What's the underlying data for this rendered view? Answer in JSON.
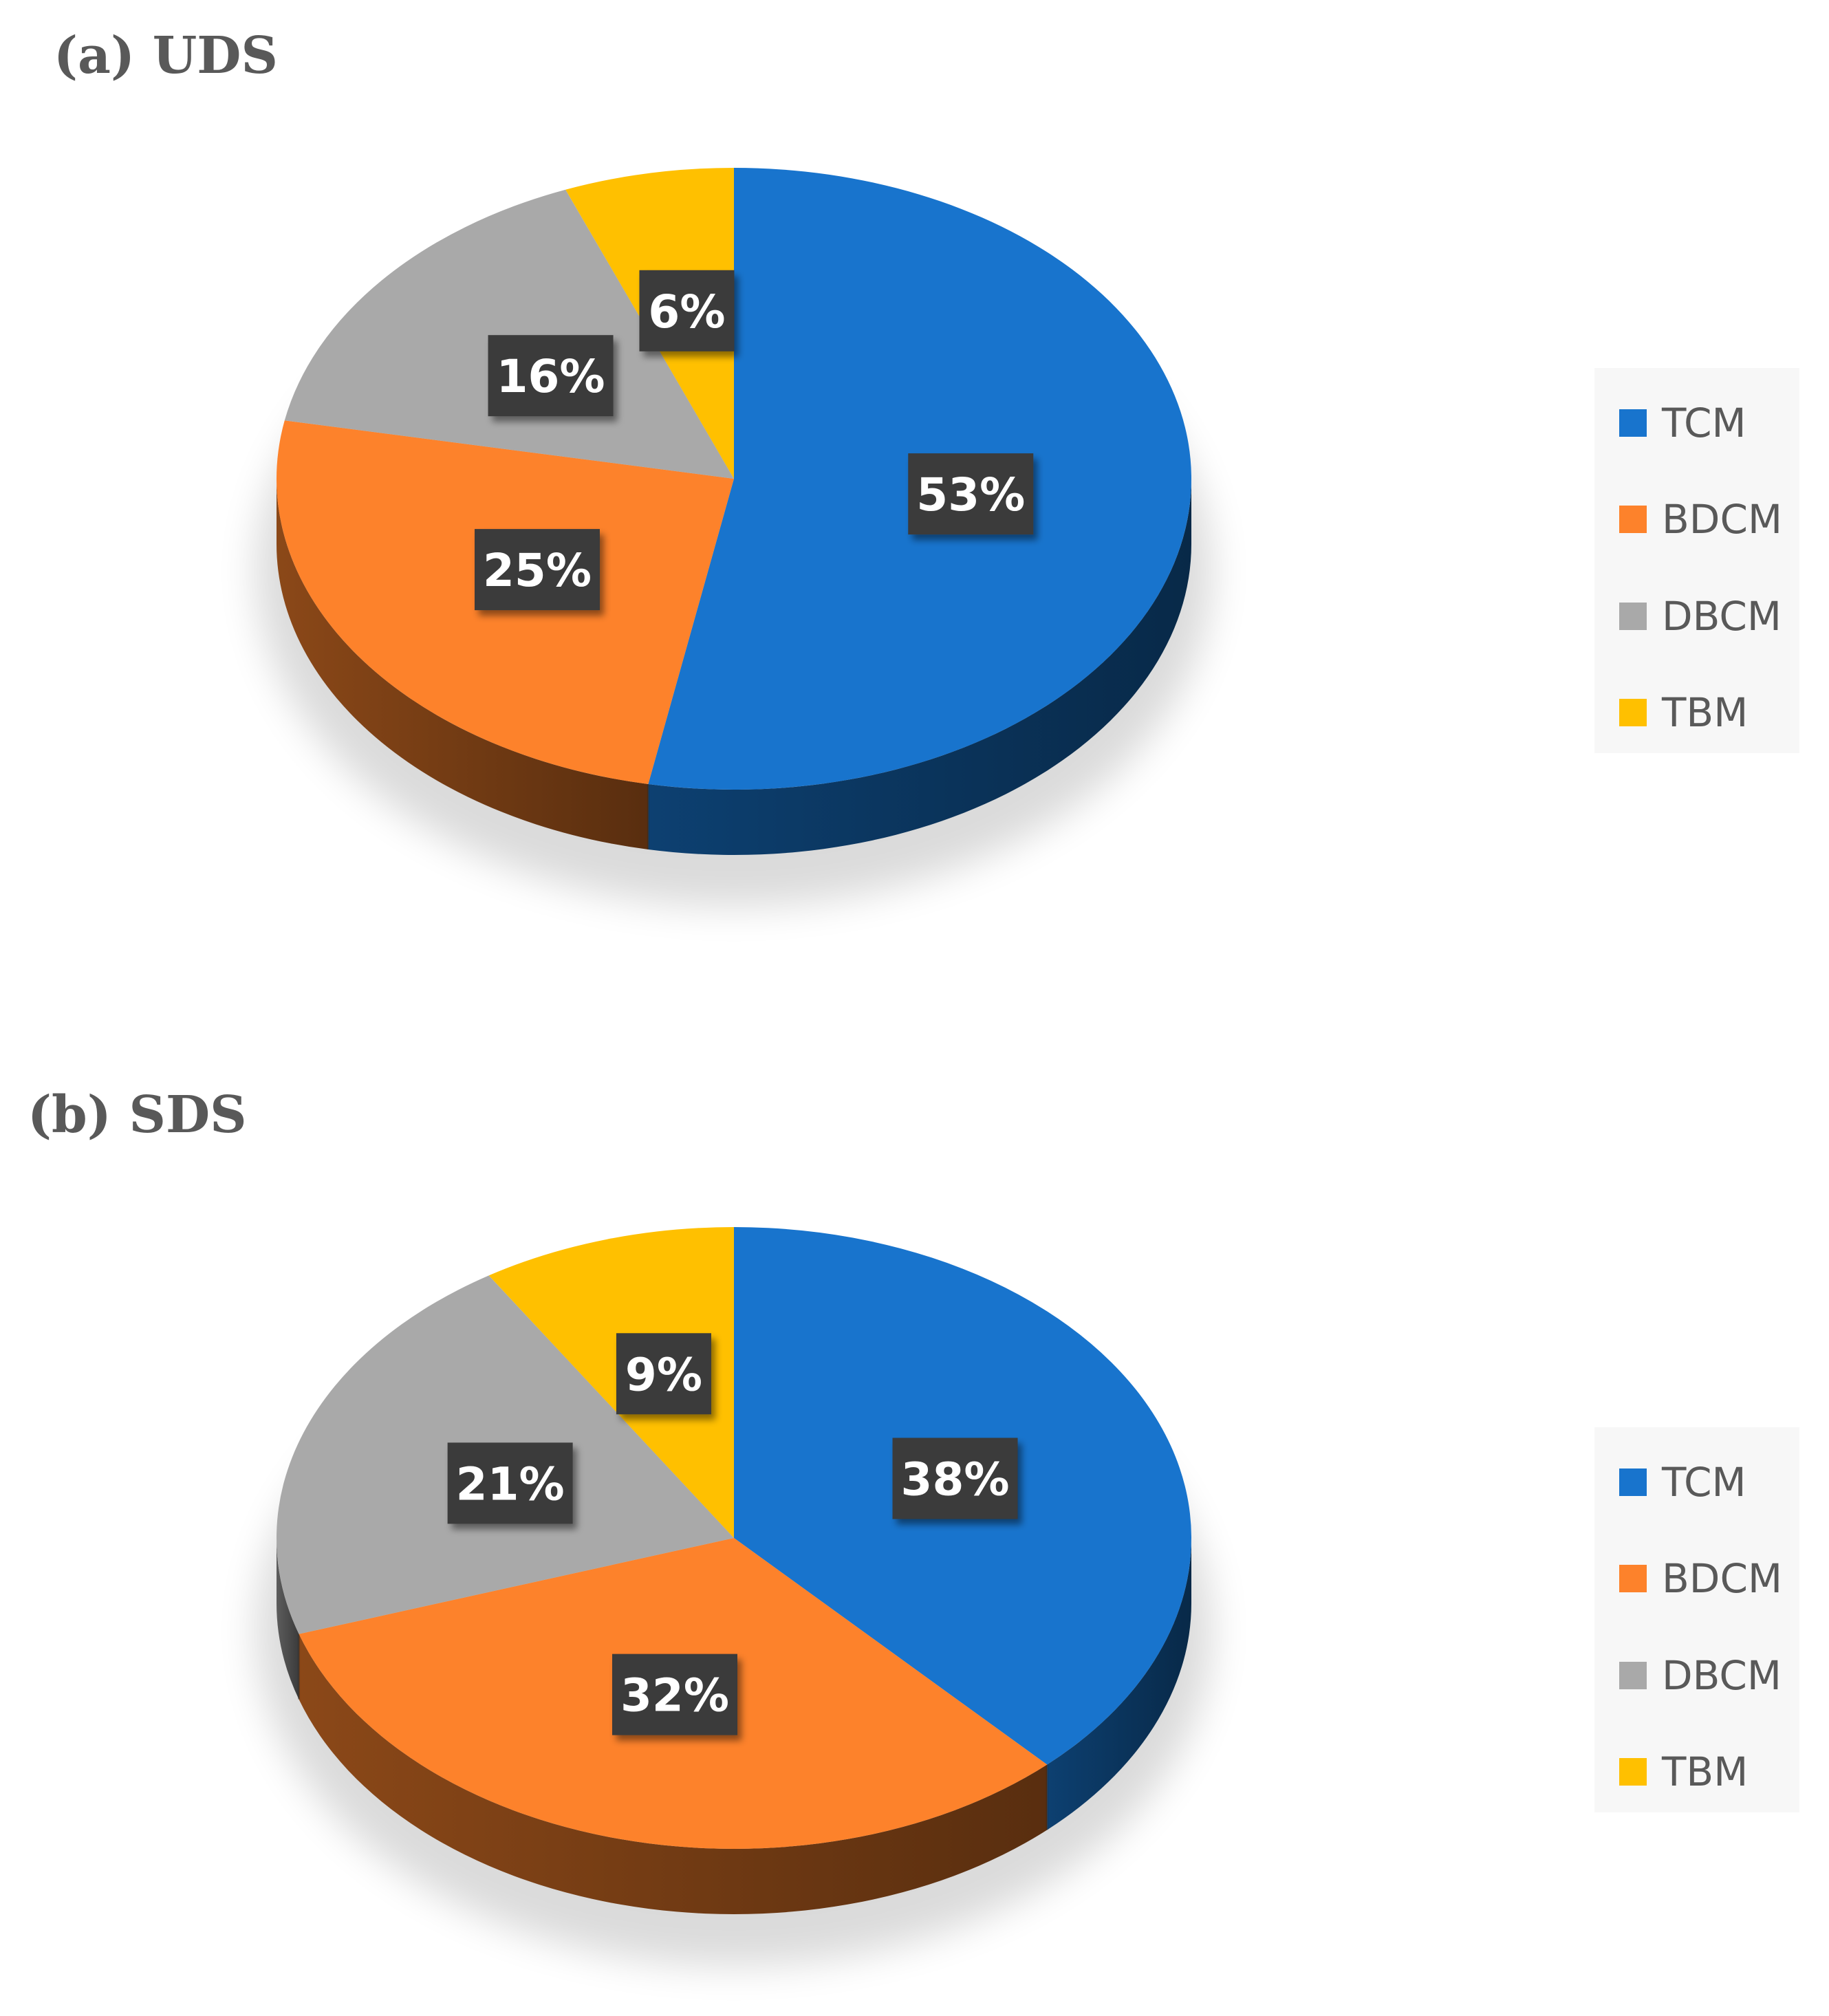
{
  "chart_data": [
    {
      "type": "pie",
      "title": "(a) UDS",
      "categories": [
        "TCM",
        "BDCM",
        "DBCM",
        "TBM"
      ],
      "values": [
        53,
        25,
        16,
        6
      ],
      "data_labels": [
        "53%",
        "25%",
        "16%",
        "6%"
      ],
      "colors": [
        "#1874cd",
        "#fd822b",
        "#a9a9a9",
        "#ffc000"
      ],
      "style": "3d-pie",
      "legend_position": "right"
    },
    {
      "type": "pie",
      "title": "(b) SDS",
      "categories": [
        "TCM",
        "BDCM",
        "DBCM",
        "TBM"
      ],
      "values": [
        38,
        32,
        21,
        9
      ],
      "data_labels": [
        "38%",
        "32%",
        "21%",
        "9%"
      ],
      "colors": [
        "#1874cd",
        "#fd822b",
        "#a9a9a9",
        "#ffc000"
      ],
      "style": "3d-pie",
      "legend_position": "right"
    }
  ]
}
